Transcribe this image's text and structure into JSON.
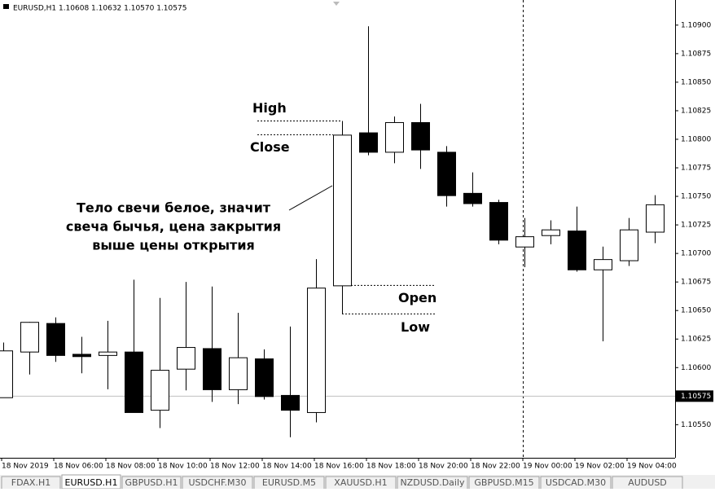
{
  "chart_data": {
    "type": "candlestick",
    "title": "EURUSD,H1  1.10608 1.10632 1.10570 1.10575",
    "categories": [
      "18 Nov 2019",
      null,
      "18 Nov 06:00",
      null,
      "18 Nov 08:00",
      null,
      "18 Nov 10:00",
      null,
      "18 Nov 12:00",
      null,
      "18 Nov 14:00",
      null,
      "18 Nov 16:00",
      null,
      "18 Nov 18:00",
      null,
      "18 Nov 20:00",
      null,
      "18 Nov 22:00",
      null,
      "19 Nov 00:00",
      null,
      "19 Nov 02:00",
      null,
      "19 Nov 04:00",
      null
    ],
    "open": [
      1.10574,
      1.10614,
      1.10639,
      1.10612,
      1.10611,
      1.10614,
      1.10563,
      1.10599,
      1.10617,
      1.10581,
      1.10608,
      1.10576,
      1.10561,
      1.10672,
      1.10806,
      1.10789,
      1.10815,
      1.10789,
      1.10753,
      1.10745,
      1.10706,
      1.10716,
      1.1072,
      1.10686,
      1.10694,
      1.10719
    ],
    "high": [
      1.10622,
      1.1064,
      1.10644,
      1.10627,
      1.10641,
      1.10677,
      1.10661,
      1.10675,
      1.10671,
      1.10648,
      1.10616,
      1.10636,
      1.10695,
      1.10816,
      1.10899,
      1.1082,
      1.10831,
      1.10794,
      1.10771,
      1.10747,
      1.10731,
      1.10729,
      1.10741,
      1.10706,
      1.10731,
      1.10751
    ],
    "low": [
      1.10574,
      1.10594,
      1.10605,
      1.10595,
      1.10581,
      1.10561,
      1.10547,
      1.1058,
      1.1057,
      1.10568,
      1.10572,
      1.10539,
      1.10552,
      1.10647,
      1.10786,
      1.10779,
      1.10774,
      1.10741,
      1.10741,
      1.10708,
      1.10688,
      1.10708,
      1.10684,
      1.10623,
      1.10689,
      1.10709
    ],
    "close": [
      1.10615,
      1.1064,
      1.10611,
      1.1061,
      1.10614,
      1.10561,
      1.10598,
      1.10618,
      1.10581,
      1.10609,
      1.10575,
      1.10563,
      1.1067,
      1.10804,
      1.10789,
      1.10815,
      1.10791,
      1.10751,
      1.10744,
      1.10712,
      1.10715,
      1.10721,
      1.10686,
      1.10695,
      1.10721,
      1.10743
    ],
    "up_color": "#ffffff",
    "down_color": "#000000",
    "ylim": [
      1.10521,
      1.10922
    ],
    "yticks": [
      {
        "value": 1.1055,
        "label": "1.10550"
      },
      {
        "value": 1.10575,
        "label": "1.10575"
      },
      {
        "value": 1.106,
        "label": "1.10600"
      },
      {
        "value": 1.10625,
        "label": "1.10625"
      },
      {
        "value": 1.1065,
        "label": "1.10650"
      },
      {
        "value": 1.10675,
        "label": "1.10675"
      },
      {
        "value": 1.107,
        "label": "1.10700"
      },
      {
        "value": 1.10725,
        "label": "1.10725"
      },
      {
        "value": 1.1075,
        "label": "1.10750"
      },
      {
        "value": 1.10775,
        "label": "1.10775"
      },
      {
        "value": 1.108,
        "label": "1.10800"
      },
      {
        "value": 1.10825,
        "label": "1.10825"
      },
      {
        "value": 1.1085,
        "label": "1.10850"
      },
      {
        "value": 1.10875,
        "label": "1.10875"
      },
      {
        "value": 1.109,
        "label": "1.10900"
      }
    ],
    "price_line": {
      "value": 1.10575,
      "label": "1.10575"
    },
    "annotations": {
      "high": "High",
      "close": "Close",
      "open": "Open",
      "low": "Low",
      "note": [
        "Тело свечи белое, значит",
        "свеча бычья, цена закрытия",
        "выше цены открытия"
      ]
    }
  },
  "tabs": [
    "FDAX.H1",
    "EURUSD.H1",
    "GBPUSD.H1",
    "USDCHF.M30",
    "EURUSD.M5",
    "XAUUSD.H1",
    "NZDUSD.Daily",
    "GBPUSD.M15",
    "USDCAD.M30",
    "AUDUSD"
  ]
}
